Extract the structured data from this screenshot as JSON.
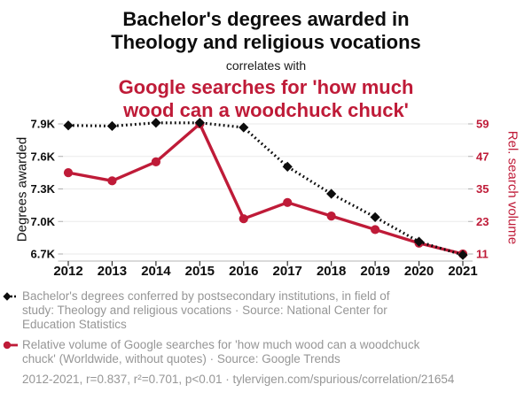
{
  "heading": {
    "black_line1": "Bachelor's degrees awarded in",
    "black_line2": "Theology and religious vocations",
    "connector": "correlates with",
    "red_line1": "Google searches for 'how much",
    "red_line2": "wood can a woodchuck chuck'"
  },
  "colors": {
    "accent_red": "#bf1b38",
    "text_black": "#0d0d0d",
    "legend_gray": "#969696",
    "grid": "#eaeaea",
    "axis_line": "#b5b5b5"
  },
  "chart_data": {
    "type": "line",
    "x": [
      2012,
      2013,
      2014,
      2015,
      2016,
      2017,
      2018,
      2019,
      2020,
      2021
    ],
    "series": [
      {
        "name": "Bachelor's degrees conferred in Theology and religious vocations",
        "axis": "left",
        "style": "dotted-diamond",
        "color": "#0d0d0d",
        "values": [
          7886,
          7880,
          7910,
          7910,
          7867,
          7505,
          7255,
          7040,
          6813,
          6691
        ]
      },
      {
        "name": "Relative volume of Google searches for 'how much wood can a woodchuck chuck'",
        "axis": "right",
        "style": "solid-circle",
        "color": "#bf1b38",
        "values": [
          41,
          38,
          45,
          59,
          24,
          30,
          25,
          20,
          15,
          11
        ]
      }
    ],
    "left_axis": {
      "label": "Degrees awarded",
      "tick_values": [
        7900,
        7600,
        7300,
        7000,
        6700
      ],
      "tick_labels": [
        "7.9K",
        "7.6K",
        "7.3K",
        "7.0K",
        "6.7K"
      ],
      "range": [
        6700,
        7900
      ]
    },
    "right_axis": {
      "label": "Rel. search volume",
      "tick_values": [
        59,
        47,
        35,
        23,
        11
      ],
      "tick_labels": [
        "59",
        "47",
        "35",
        "23",
        "11"
      ],
      "range": [
        11,
        59
      ]
    },
    "grid": true,
    "legend_position": "bottom"
  },
  "legend": {
    "items": [
      {
        "lines": [
          "Bachelor's degrees conferred by postsecondary institutions, in field of",
          "study: Theology and religious vocations · Source: National Center for",
          "Education Statistics"
        ]
      },
      {
        "lines": [
          "Relative volume of Google searches for 'how much wood can a woodchuck",
          "chuck' (Worldwide, without quotes) · Source: Google Trends"
        ]
      }
    ],
    "footer": "2012-2021, r=0.837, r²=0.701, p<0.01 · tylervigen.com/spurious/correlation/21654"
  }
}
